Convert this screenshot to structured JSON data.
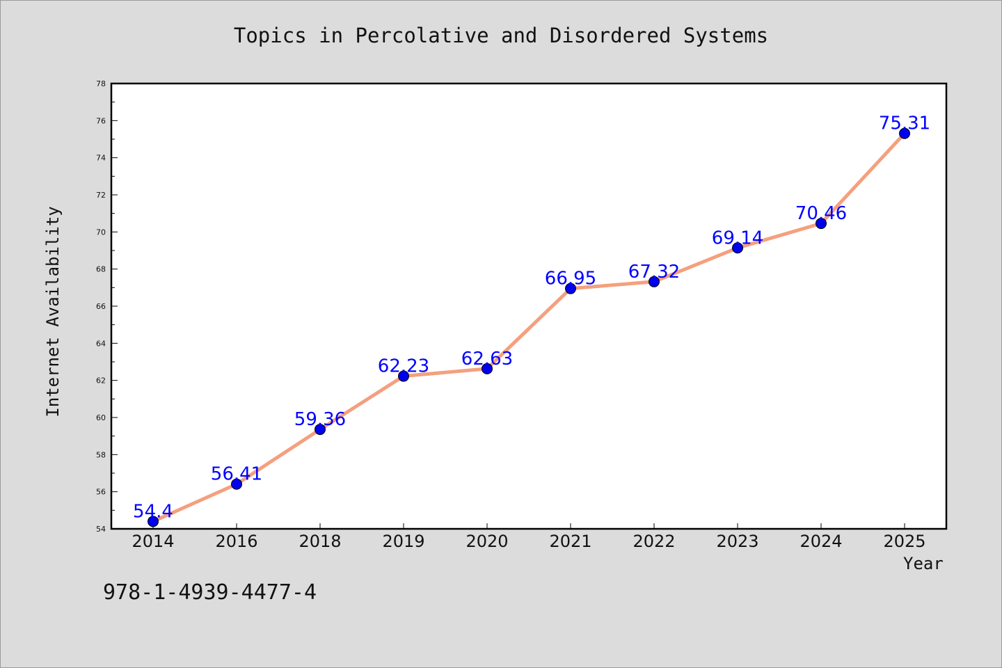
{
  "chart_data": {
    "type": "line",
    "title": "Topics in Percolative and Disordered Systems",
    "xlabel": "Year",
    "ylabel": "Internet Availability",
    "categories": [
      "2014",
      "2016",
      "2018",
      "2019",
      "2020",
      "2021",
      "2022",
      "2023",
      "2024",
      "2025"
    ],
    "values": [
      54.4,
      56.41,
      59.36,
      62.23,
      62.63,
      66.95,
      67.32,
      69.14,
      70.46,
      75.31
    ],
    "data_labels": [
      "54.4",
      "56.41",
      "59.36",
      "62.23",
      "62.63",
      "66.95",
      "67.32",
      "69.14",
      "70.46",
      "75.31"
    ],
    "ylim": [
      54,
      78
    ],
    "y_major_ticks": [
      54,
      56,
      58,
      60,
      62,
      64,
      66,
      68,
      70,
      72,
      74,
      76,
      78
    ],
    "y_minor_step": 1,
    "grid": false,
    "legend": "none",
    "line_color": "#f4a07e",
    "marker_color": "#0000ee",
    "label_color": "#0000ff"
  },
  "watermark_text": "978-1-4939-4477-4"
}
